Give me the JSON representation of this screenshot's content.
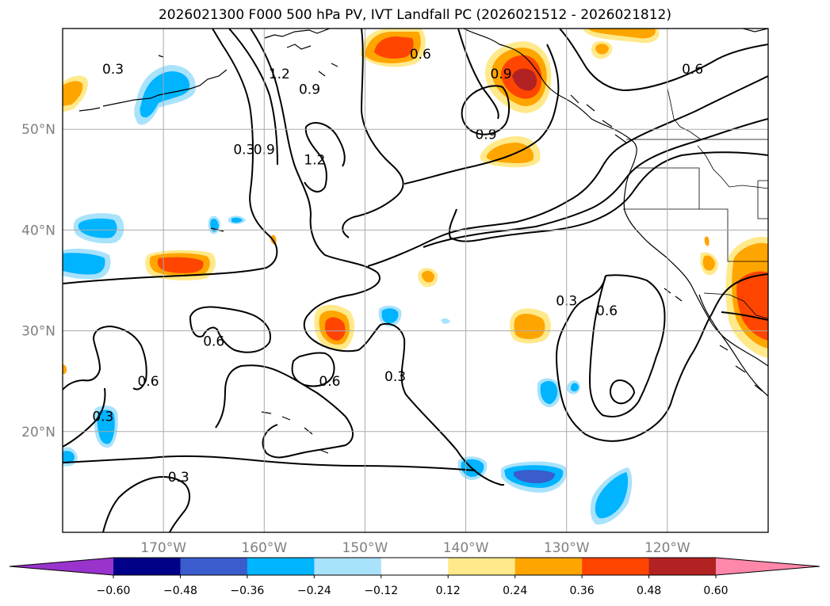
{
  "title": "2026021300 F000 500 hPa PV, IVT Landfall PC (2026021512 - 2026021812)",
  "map": {
    "lon_range": [
      -180,
      -110
    ],
    "lat_range": [
      10,
      60
    ],
    "lon_ticks": [
      {
        "lon": -170,
        "label": "170°W"
      },
      {
        "lon": -160,
        "label": "160°W"
      },
      {
        "lon": -150,
        "label": "150°W"
      },
      {
        "lon": -140,
        "label": "140°W"
      },
      {
        "lon": -130,
        "label": "130°W"
      },
      {
        "lon": -120,
        "label": "120°W"
      }
    ],
    "lat_ticks": [
      {
        "lat": 20,
        "label": "20°N"
      },
      {
        "lat": 30,
        "label": "30°N"
      },
      {
        "lat": 40,
        "label": "40°N"
      },
      {
        "lat": 50,
        "label": "50°N"
      }
    ],
    "grid": true
  },
  "contour_labels": [
    {
      "text": "0.3",
      "lon": -175,
      "lat": 56
    },
    {
      "text": "1.2",
      "lon": -158.5,
      "lat": 55.5
    },
    {
      "text": "0.9",
      "lon": -155.5,
      "lat": 54
    },
    {
      "text": "0.6",
      "lon": -144.5,
      "lat": 57.5
    },
    {
      "text": "0.9",
      "lon": -136.5,
      "lat": 55.5
    },
    {
      "text": "0.6",
      "lon": -117.5,
      "lat": 56
    },
    {
      "text": "1.2",
      "lon": -155,
      "lat": 47
    },
    {
      "text": "0.9",
      "lon": -138,
      "lat": 49.5
    },
    {
      "text": "0.3",
      "lon": -162,
      "lat": 48
    },
    {
      "text": "0.9",
      "lon": -160,
      "lat": 48
    },
    {
      "text": "0.6",
      "lon": -165,
      "lat": 29
    },
    {
      "text": "0.6",
      "lon": -153.5,
      "lat": 25
    },
    {
      "text": "0.3",
      "lon": -147,
      "lat": 25.5
    },
    {
      "text": "0.6",
      "lon": -171.5,
      "lat": 25
    },
    {
      "text": "0.3",
      "lon": -176,
      "lat": 21.5
    },
    {
      "text": "0.3",
      "lon": -168.5,
      "lat": 15.5
    },
    {
      "text": "0.3",
      "lon": -130,
      "lat": 33
    },
    {
      "text": "0.6",
      "lon": -126,
      "lat": 32
    }
  ],
  "colorbar": {
    "colors": [
      "#9933cc",
      "#000088",
      "#3a5ccc",
      "#00b4ff",
      "#a9e2fb",
      "#ffffff",
      "#ffe98a",
      "#ffa500",
      "#ff4500",
      "#b22222",
      "#ff88aa"
    ],
    "ticks": [
      "−0.60",
      "−0.48",
      "−0.36",
      "−0.24",
      "−0.12",
      "0.12",
      "0.24",
      "0.36",
      "0.48",
      "0.60"
    ]
  },
  "shading_colors": {
    "pos1": "#ffe98a",
    "pos2": "#ffa500",
    "pos3": "#ff4500",
    "pos4": "#b22222",
    "neg1": "#a9e2fb",
    "neg2": "#00b4ff",
    "neg3": "#3a5ccc"
  }
}
